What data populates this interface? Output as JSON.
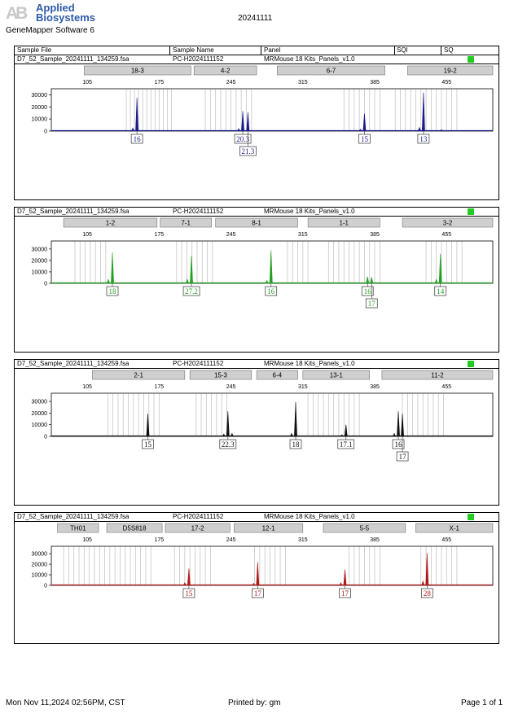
{
  "header": {
    "logo_ab": "AB",
    "logo_line1": "Applied",
    "logo_line2": "Biosystems",
    "software": "GeneMapper Software 6",
    "date": "20241111"
  },
  "columns": {
    "sample_file": "Sample File",
    "sample_name": "Sample Name",
    "panel": "Panel",
    "sqi": "SQI",
    "sq": "SQ"
  },
  "footer": {
    "printed_on": "Mon Nov 11,2024 02:56PM, CST",
    "printed_by": "Printed by: gm",
    "page": "Page 1 of 1"
  },
  "colors": {
    "blue": "#1a1a8c",
    "green": "#22a022",
    "black": "#111111",
    "red": "#b01818",
    "bin": "#c6c6c6",
    "marker_box": "#cfcfcf",
    "sq_status": "#22cc22"
  },
  "chart_data": [
    {
      "type": "line",
      "dye": "blue",
      "sample_file": "D7_52_Sample_20241111_134259.fsa",
      "sample_name": "PC-H2024111152",
      "panel": "MRMouse 18 Kits_Panels_v1.0",
      "x_range": [
        70,
        500
      ],
      "x_ticks": [
        105,
        175,
        245,
        315,
        385,
        455
      ],
      "y_range": [
        0,
        35000
      ],
      "y_ticks": [
        0,
        10000,
        20000,
        30000
      ],
      "markers": [
        {
          "name": "18-3",
          "range": [
            102,
            206
          ]
        },
        {
          "name": "4-2",
          "range": [
            209,
            270
          ]
        },
        {
          "name": "6-7",
          "range": [
            290,
            395
          ]
        },
        {
          "name": "19-2",
          "range": [
            417,
            520
          ]
        }
      ],
      "bins": [
        143,
        147,
        151,
        155,
        159,
        163,
        167,
        171,
        175,
        179,
        183,
        187,
        220,
        225,
        230,
        235,
        240,
        245,
        250,
        255,
        260,
        265,
        355,
        360,
        365,
        370,
        375,
        380,
        385,
        390,
        405,
        410,
        415,
        420,
        425,
        430,
        435,
        440,
        445,
        450,
        455,
        460,
        465
      ],
      "peaks": [
        {
          "x": 149.4,
          "y": 2500
        },
        {
          "x": 153.4,
          "y": 27500
        },
        {
          "x": 256.5,
          "y": 16500
        },
        {
          "x": 261.5,
          "y": 15500
        },
        {
          "x": 252.5,
          "y": 2000
        },
        {
          "x": 371,
          "y": 1500
        },
        {
          "x": 375,
          "y": 14500
        },
        {
          "x": 428.5,
          "y": 3000
        },
        {
          "x": 432.5,
          "y": 32000
        },
        {
          "x": 450,
          "y": 1200
        }
      ],
      "alleles": [
        {
          "label": "16",
          "x": 153.4,
          "row": 0
        },
        {
          "label": "20.3",
          "x": 256.5,
          "row": 0
        },
        {
          "label": "21.3",
          "x": 261.5,
          "row": 1
        },
        {
          "label": "15",
          "x": 375,
          "row": 0
        },
        {
          "label": "13",
          "x": 432.5,
          "row": 0
        }
      ]
    },
    {
      "type": "line",
      "dye": "green",
      "sample_file": "D7_52_Sample_20241111_134259.fsa",
      "sample_name": "PC-H2024111152",
      "panel": "MRMouse 18 Kits_Panels_v1.0",
      "x_range": [
        70,
        500
      ],
      "x_ticks": [
        105,
        175,
        245,
        315,
        385,
        455
      ],
      "y_range": [
        0,
        37000
      ],
      "y_ticks": [
        0,
        10000,
        20000,
        30000
      ],
      "markers": [
        {
          "name": "1-2",
          "range": [
            82,
            173
          ]
        },
        {
          "name": "7-1",
          "range": [
            176,
            226
          ]
        },
        {
          "name": "8-1",
          "range": [
            230,
            310
          ]
        },
        {
          "name": "1-1",
          "range": [
            320,
            390
          ]
        },
        {
          "name": "3-2",
          "range": [
            412,
            518
          ]
        }
      ],
      "bins": [
        93,
        98,
        103,
        108,
        113,
        118,
        123,
        192,
        197,
        202,
        207,
        212,
        217,
        222,
        227,
        300,
        305,
        310,
        315,
        320,
        340,
        345,
        350,
        355,
        360,
        365,
        370,
        375,
        380,
        385,
        390,
        435,
        440,
        445,
        450,
        455,
        460,
        465,
        470
      ],
      "peaks": [
        {
          "x": 125.5,
          "y": 3500
        },
        {
          "x": 129.5,
          "y": 27000
        },
        {
          "x": 202.5,
          "y": 3500
        },
        {
          "x": 206.5,
          "y": 24000
        },
        {
          "x": 284,
          "y": 29000
        },
        {
          "x": 280,
          "y": 2500
        },
        {
          "x": 378,
          "y": 6000
        },
        {
          "x": 382,
          "y": 5500
        },
        {
          "x": 445,
          "y": 3500
        },
        {
          "x": 449,
          "y": 26000
        }
      ],
      "alleles": [
        {
          "label": "18",
          "x": 129.5,
          "row": 0
        },
        {
          "label": "27.2",
          "x": 206.5,
          "row": 0
        },
        {
          "label": "16",
          "x": 284,
          "row": 0
        },
        {
          "label": "16",
          "x": 378,
          "row": 0
        },
        {
          "label": "17",
          "x": 382,
          "row": 1
        },
        {
          "label": "14",
          "x": 449,
          "row": 0
        }
      ]
    },
    {
      "type": "line",
      "dye": "black",
      "sample_file": "D7_52_Sample_20241111_134259.fsa",
      "sample_name": "PC-H2024111152",
      "panel": "MRMouse 18 Kits_Panels_v1.0",
      "x_range": [
        70,
        500
      ],
      "x_ticks": [
        105,
        175,
        245,
        315,
        385,
        455
      ],
      "y_range": [
        0,
        37000
      ],
      "y_ticks": [
        0,
        10000,
        20000,
        30000
      ],
      "markers": [
        {
          "name": "2-1",
          "range": [
            110,
            200
          ]
        },
        {
          "name": "15-3",
          "range": [
            205,
            265
          ]
        },
        {
          "name": "6-4",
          "range": [
            270,
            310
          ]
        },
        {
          "name": "13-1",
          "range": [
            315,
            380
          ]
        },
        {
          "name": "11-2",
          "range": [
            392,
            505
          ]
        }
      ],
      "bins": [
        125,
        130,
        135,
        140,
        145,
        150,
        155,
        160,
        165,
        170,
        175,
        211,
        216,
        221,
        226,
        231,
        236,
        241,
        320,
        325,
        330,
        335,
        340,
        345,
        350,
        355,
        360,
        365,
        370,
        412,
        417,
        422,
        427,
        432,
        437,
        442,
        447,
        452
      ],
      "peaks": [
        {
          "x": 164,
          "y": 19500
        },
        {
          "x": 238,
          "y": 2000
        },
        {
          "x": 242,
          "y": 21500
        },
        {
          "x": 246,
          "y": 2500
        },
        {
          "x": 308,
          "y": 29500
        },
        {
          "x": 304,
          "y": 2500
        },
        {
          "x": 357,
          "y": 10000
        },
        {
          "x": 353,
          "y": 1500
        },
        {
          "x": 408,
          "y": 21500
        },
        {
          "x": 412,
          "y": 19500
        },
        {
          "x": 404,
          "y": 2500
        }
      ],
      "alleles": [
        {
          "label": "15",
          "x": 164,
          "row": 0
        },
        {
          "label": "22.3",
          "x": 242,
          "row": 0
        },
        {
          "label": "18",
          "x": 308,
          "row": 0
        },
        {
          "label": "17.1",
          "x": 357,
          "row": 0
        },
        {
          "label": "16",
          "x": 408,
          "row": 0
        },
        {
          "label": "17",
          "x": 412,
          "row": 1
        }
      ]
    },
    {
      "type": "line",
      "dye": "red",
      "sample_file": "D7_52_Sample_20241111_134259.fsa",
      "sample_name": "PC-H2024111152",
      "panel": "MRMouse 18 Kits_Panels_v1.0",
      "x_range": [
        70,
        500
      ],
      "x_ticks": [
        105,
        175,
        245,
        315,
        385,
        455
      ],
      "y_range": [
        0,
        37000
      ],
      "y_ticks": [
        0,
        10000,
        20000,
        30000
      ],
      "markers": [
        {
          "name": "TH01",
          "range": [
            76,
            116
          ]
        },
        {
          "name": "D5S818",
          "range": [
            124,
            178
          ]
        },
        {
          "name": "17-2",
          "range": [
            181,
            244
          ]
        },
        {
          "name": "12-1",
          "range": [
            248,
            315
          ]
        },
        {
          "name": "5-5",
          "range": [
            335,
            415
          ]
        },
        {
          "name": "X-1",
          "range": [
            425,
            510
          ]
        }
      ],
      "bins": [
        82,
        87,
        92,
        97,
        102,
        107,
        112,
        117,
        122,
        127,
        132,
        137,
        142,
        147,
        152,
        157,
        162,
        167,
        190,
        195,
        200,
        205,
        210,
        215,
        220,
        225,
        268,
        273,
        278,
        283,
        288,
        293,
        298,
        360,
        365,
        370,
        375,
        380,
        385,
        390,
        430,
        435,
        440,
        445,
        450,
        455,
        460,
        465
      ],
      "peaks": [
        {
          "x": 200,
          "y": 2500
        },
        {
          "x": 204,
          "y": 16000
        },
        {
          "x": 271,
          "y": 22000
        },
        {
          "x": 267,
          "y": 2000
        },
        {
          "x": 352,
          "y": 2500
        },
        {
          "x": 356,
          "y": 15000
        },
        {
          "x": 432,
          "y": 4000
        },
        {
          "x": 436,
          "y": 30500
        }
      ],
      "alleles": [
        {
          "label": "15",
          "x": 204,
          "row": 0
        },
        {
          "label": "17",
          "x": 271,
          "row": 0
        },
        {
          "label": "17",
          "x": 356,
          "row": 0
        },
        {
          "label": "28",
          "x": 436,
          "row": 0
        }
      ]
    }
  ]
}
